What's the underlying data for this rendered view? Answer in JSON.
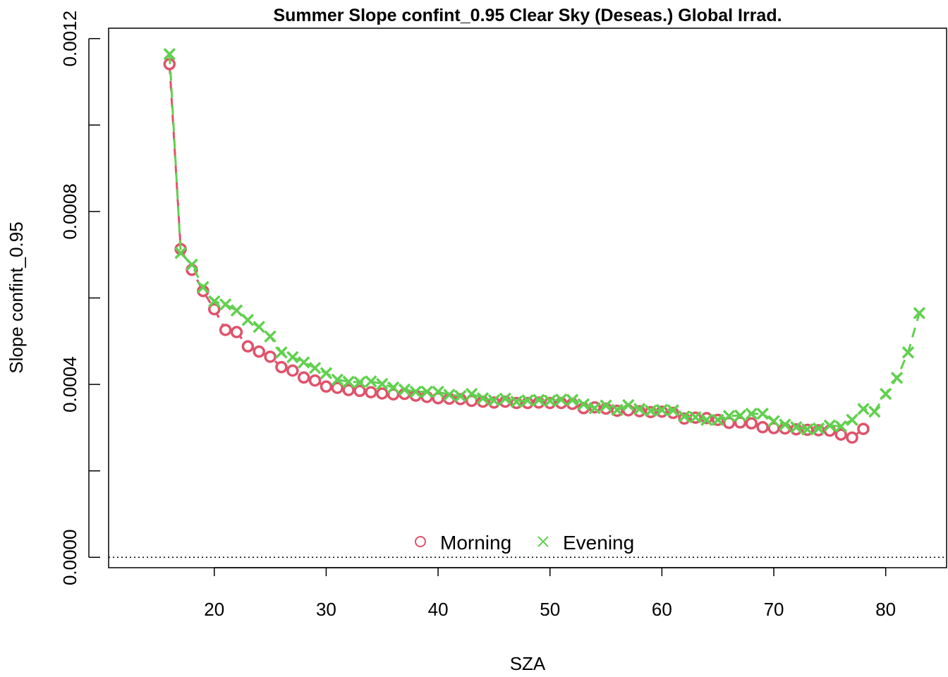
{
  "chart_data": {
    "type": "scatter",
    "title": "Summer Slope confint_0.95 Clear Sky (Deseas.) Global Irrad.",
    "xlabel": "SZA",
    "ylabel": "Slope confint_0.95",
    "xlim": [
      12,
      84
    ],
    "ylim": [
      0,
      0.0012
    ],
    "x_ticks": [
      20,
      30,
      40,
      50,
      60,
      70,
      80
    ],
    "x_tick_labels": [
      "20",
      "30",
      "40",
      "50",
      "60",
      "70",
      "80"
    ],
    "y_ticks": [
      0,
      0.0002,
      0.0004,
      0.0006,
      0.0008,
      0.001,
      0.0012
    ],
    "y_tick_labels": [
      "0.0000",
      "",
      "0.0004",
      "",
      "0.0008",
      "",
      "0.0012"
    ],
    "grid": false,
    "reference_line": {
      "y": 0,
      "style": "dotted"
    },
    "legend": {
      "placement": "bottom",
      "orientation": "horizontal"
    },
    "series": [
      {
        "name": "Morning",
        "marker": "circle",
        "color": "#DF536B",
        "x": [
          16,
          17,
          18,
          19,
          20,
          21,
          22,
          23,
          24,
          25,
          26,
          27,
          28,
          29,
          30,
          31,
          32,
          33,
          34,
          35,
          36,
          37,
          38,
          39,
          40,
          41,
          42,
          43,
          44,
          45,
          46,
          47,
          48,
          49,
          50,
          51,
          52,
          53,
          54,
          55,
          56,
          57,
          58,
          59,
          60,
          61,
          62,
          63,
          64,
          65,
          66,
          67,
          68,
          69,
          70,
          71,
          72,
          73,
          74,
          75,
          76,
          77,
          78
        ],
        "values": [
          0.001141,
          0.000713,
          0.000665,
          0.000616,
          0.000574,
          0.000526,
          0.000521,
          0.000488,
          0.000476,
          0.000464,
          0.00044,
          0.000432,
          0.000416,
          0.000409,
          0.000395,
          0.000392,
          0.000387,
          0.000385,
          0.000382,
          0.000379,
          0.000377,
          0.000378,
          0.000374,
          0.000371,
          0.000368,
          0.000367,
          0.000366,
          0.000362,
          0.00036,
          0.000358,
          0.00036,
          0.000357,
          0.000357,
          0.000358,
          0.000357,
          0.000357,
          0.000355,
          0.000345,
          0.000347,
          0.000344,
          0.000339,
          0.00034,
          0.000338,
          0.000336,
          0.000337,
          0.000334,
          0.000321,
          0.000323,
          0.000322,
          0.000318,
          0.000311,
          0.000312,
          0.00031,
          0.000301,
          0.000299,
          0.000298,
          0.000296,
          0.000295,
          0.000294,
          0.000293,
          0.000284,
          0.000277,
          0.000297
        ]
      },
      {
        "name": "Evening",
        "marker": "cross",
        "color": "#61D04F",
        "x": [
          16,
          17,
          18,
          19,
          20,
          21,
          22,
          23,
          24,
          25,
          26,
          27,
          28,
          29,
          30,
          31,
          32,
          33,
          34,
          35,
          36,
          37,
          38,
          39,
          40,
          41,
          42,
          43,
          44,
          45,
          46,
          47,
          48,
          49,
          50,
          51,
          52,
          53,
          54,
          55,
          56,
          57,
          58,
          59,
          60,
          61,
          62,
          63,
          64,
          65,
          66,
          67,
          68,
          69,
          70,
          71,
          72,
          73,
          74,
          75,
          76,
          77,
          78,
          79,
          80,
          81,
          82,
          83
        ],
        "values": [
          0.001164,
          0.000704,
          0.000677,
          0.000625,
          0.000592,
          0.000585,
          0.000571,
          0.000549,
          0.000533,
          0.000511,
          0.000474,
          0.000463,
          0.000451,
          0.000438,
          0.000426,
          0.000411,
          0.000406,
          0.000405,
          0.000407,
          0.000401,
          0.000393,
          0.000388,
          0.000383,
          0.000383,
          0.000383,
          0.000376,
          0.000373,
          0.000378,
          0.000368,
          0.000363,
          0.000367,
          0.00036,
          0.000363,
          0.000364,
          0.000362,
          0.000365,
          0.000364,
          0.000354,
          0.000345,
          0.000351,
          0.000341,
          0.000352,
          0.000343,
          0.000339,
          0.000341,
          0.00034,
          0.000326,
          0.000324,
          0.000318,
          0.000318,
          0.000327,
          0.000328,
          0.000332,
          0.000332,
          0.000315,
          0.000307,
          0.000301,
          0.000296,
          0.000298,
          0.000305,
          0.000303,
          0.000318,
          0.000343,
          0.000337,
          0.000378,
          0.000415,
          0.000474,
          0.000565
        ]
      }
    ]
  }
}
